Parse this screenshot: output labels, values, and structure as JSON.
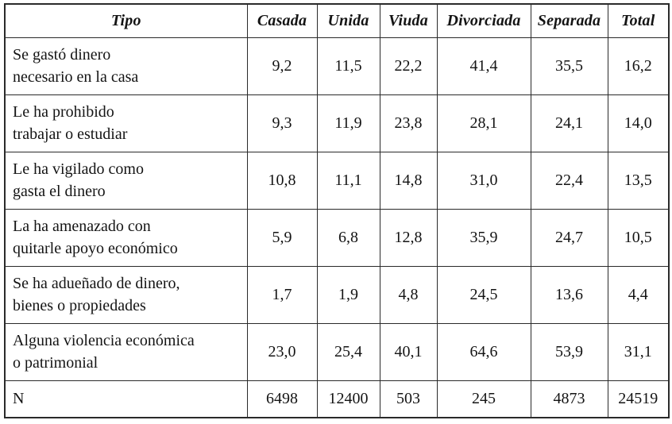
{
  "style": {
    "border_color": "#2a2a2a",
    "text_color": "#141414",
    "background": "#ffffff"
  },
  "table": {
    "columns": [
      "Tipo",
      "Casada",
      "Unida",
      "Viuda",
      "Divorciada",
      "Separada",
      "Total"
    ],
    "rows": [
      {
        "label": "Se gastó dinero\nnecesario en la casa",
        "values": [
          "9,2",
          "11,5",
          "22,2",
          "41,4",
          "35,5",
          "16,2"
        ]
      },
      {
        "label": "Le ha prohibido\ntrabajar o estudiar",
        "values": [
          "9,3",
          "11,9",
          "23,8",
          "28,1",
          "24,1",
          "14,0"
        ]
      },
      {
        "label": "Le ha vigilado como\ngasta el dinero",
        "values": [
          "10,8",
          "11,1",
          "14,8",
          "31,0",
          "22,4",
          "13,5"
        ]
      },
      {
        "label": "La ha amenazado con\nquitarle apoyo económico",
        "values": [
          "5,9",
          "6,8",
          "12,8",
          "35,9",
          "24,7",
          "10,5"
        ]
      },
      {
        "label": "Se ha adueñado de dinero,\nbienes o propiedades",
        "values": [
          "1,7",
          "1,9",
          "4,8",
          "24,5",
          "13,6",
          "4,4"
        ]
      },
      {
        "label": "Alguna violencia económica\no patrimonial",
        "values": [
          "23,0",
          "25,4",
          "40,1",
          "64,6",
          "53,9",
          "31,1"
        ]
      },
      {
        "label": "N",
        "values": [
          "6498",
          "12400",
          "503",
          "245",
          "4873",
          "24519"
        ]
      }
    ]
  }
}
